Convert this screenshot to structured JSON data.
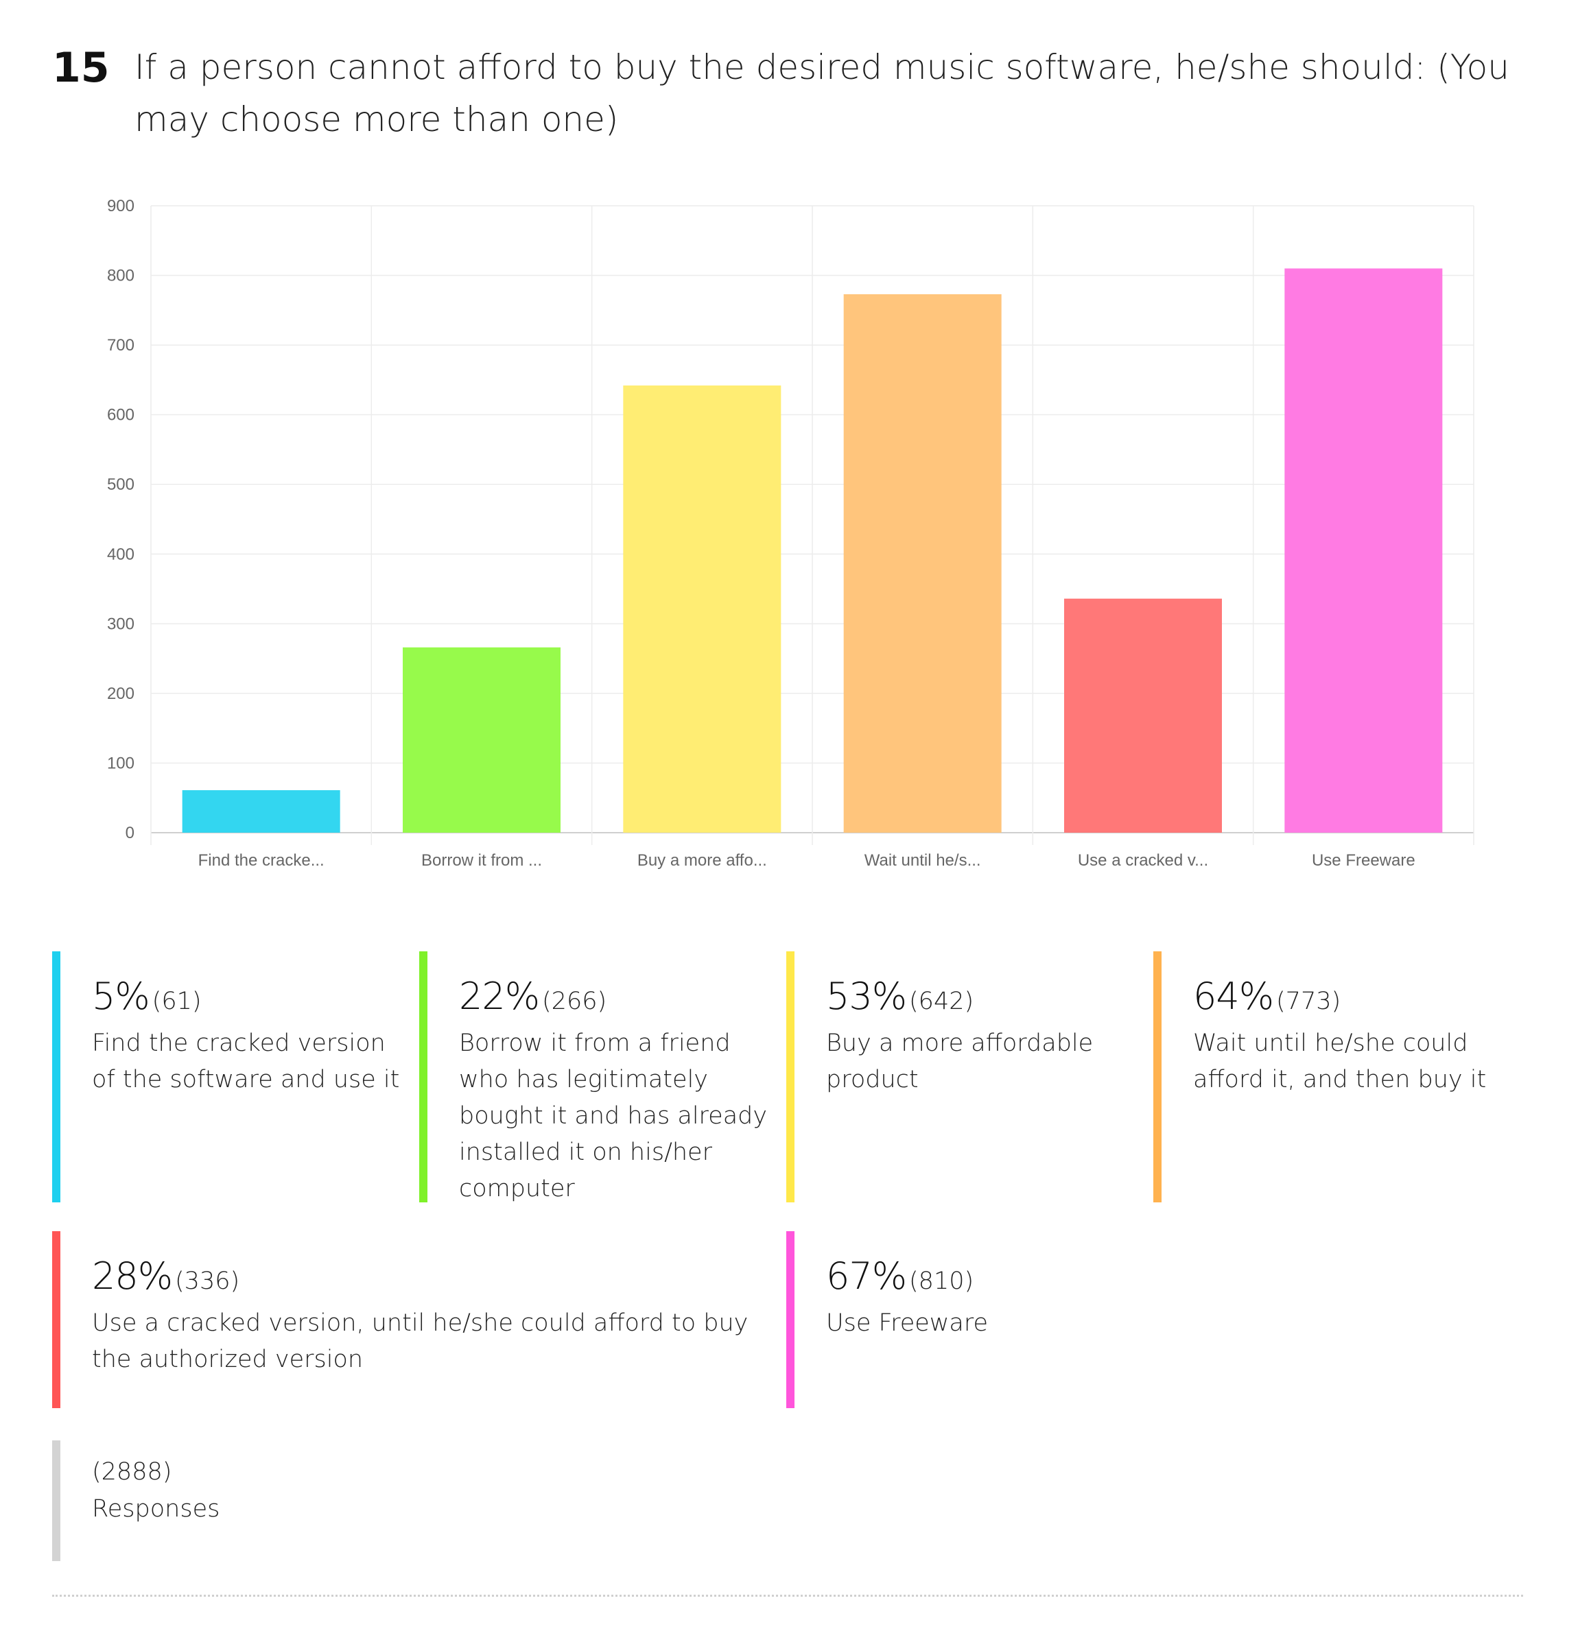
{
  "question": {
    "number": "15",
    "text": "If a person cannot afford to buy the desired music software, he/she should: (You may choose more than one)"
  },
  "chart_data": {
    "type": "bar",
    "categories": [
      "Find the cracke...",
      "Borrow it from ...",
      "Buy a more affo...",
      "Wait until he/s...",
      "Use a cracked v...",
      "Use Freeware"
    ],
    "values": [
      61,
      266,
      642,
      773,
      336,
      810
    ],
    "colors": [
      "#33D6F0",
      "#97FA4B",
      "#FFED73",
      "#FFC57C",
      "#FF7878",
      "#FF7BE3"
    ],
    "yticks": [
      0,
      100,
      200,
      300,
      400,
      500,
      600,
      700,
      800,
      900
    ],
    "ylim": [
      0,
      900
    ],
    "grid": true
  },
  "legend": [
    {
      "pct": "5%",
      "count": "(61)",
      "label": "Find the cracked version of the software and use it",
      "color": "#1ED0EF"
    },
    {
      "pct": "22%",
      "count": "(266)",
      "label": "Borrow it from a friend who has legitimately bought it and has already installed it on his/her computer",
      "color": "#7FF12A"
    },
    {
      "pct": "53%",
      "count": "(642)",
      "label": "Buy a more affordable product",
      "color": "#FFE84A"
    },
    {
      "pct": "64%",
      "count": "(773)",
      "label": "Wait until he/she could afford it, and then buy it",
      "color": "#FFB24F"
    },
    {
      "pct": "28%",
      "count": "(336)",
      "label": "Use a cracked version, until he/she could afford to buy the authorized version",
      "color": "#FF5555"
    },
    {
      "pct": "67%",
      "count": "(810)",
      "label": "Use Freeware",
      "color": "#FF55DB"
    }
  ],
  "responses": {
    "count": "(2888)",
    "label": "Responses",
    "color": "#D3D3D3"
  }
}
